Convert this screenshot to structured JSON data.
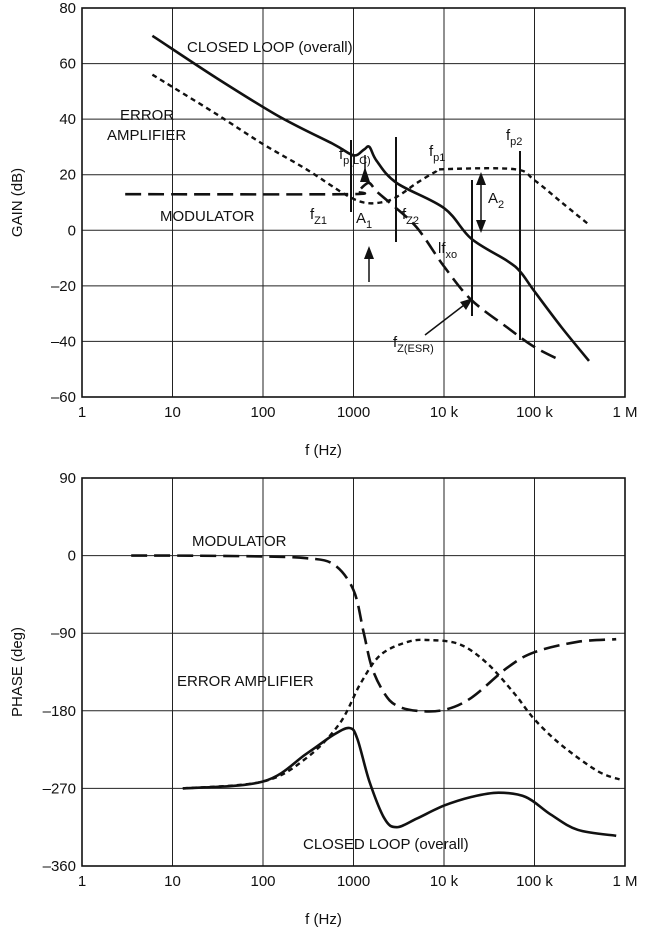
{
  "chart_data": [
    {
      "type": "line",
      "xscale": "log",
      "xlim": [
        1,
        1000000
      ],
      "ylim": [
        -60,
        80
      ],
      "xlabel": "f (Hz)",
      "ylabel": "GAIN (dB)",
      "x_tick_labels": [
        "1",
        "10",
        "100",
        "1000",
        "10 k",
        "100 k",
        "1 M"
      ],
      "y_ticks": [
        -60,
        -40,
        -20,
        0,
        20,
        40,
        60,
        80
      ],
      "y_tick_labels": [
        "–60",
        "–40",
        "–20",
        "0",
        "20",
        "40",
        "60",
        "80"
      ],
      "grid": true,
      "series": [
        {
          "name": "CLOSED LOOP (overall)",
          "style": "solid",
          "x": [
            6,
            30,
            150,
            600,
            1000,
            1300,
            1500,
            1800,
            3000,
            10000,
            20000,
            50000,
            70000,
            100000,
            200000,
            400000
          ],
          "y": [
            70,
            55,
            41,
            31,
            27,
            29,
            30,
            25,
            17,
            8,
            -3,
            -11,
            -15,
            -22,
            -35,
            -47
          ]
        },
        {
          "name": "ERROR AMPLIFIER",
          "style": "short-dash",
          "x": [
            6,
            30,
            100,
            300,
            800,
            1300,
            2000,
            3000,
            5000,
            8000,
            10000,
            60000,
            100000,
            200000,
            400000
          ],
          "y": [
            56,
            42,
            31,
            22,
            13,
            10,
            10,
            12,
            17,
            21,
            22,
            22,
            18,
            10,
            2
          ]
        },
        {
          "name": "MODULATOR",
          "style": "long-dash",
          "x": [
            3,
            800,
            1100,
            1300,
            1500,
            1800,
            2500,
            5000,
            10000,
            20000,
            50000,
            100000,
            200000
          ],
          "y": [
            13,
            13,
            14,
            16,
            17,
            14,
            10,
            1,
            -13,
            -25,
            -35,
            -42,
            -47
          ]
        }
      ],
      "annotations": {
        "closed_loop": "CLOSED LOOP (overall)",
        "error_amp_1": "ERROR",
        "error_amp_2": "AMPLIFIER",
        "modulator": "MODULATOR",
        "fp_lc": {
          "main": "f",
          "sub": "p(LC)"
        },
        "fp1": {
          "main": "f",
          "sub": "p1"
        },
        "fp2": {
          "main": "f",
          "sub": "p2"
        },
        "fz1": {
          "main": "f",
          "sub": "Z1"
        },
        "fz2": {
          "main": "f",
          "sub": "Z2"
        },
        "a1": {
          "main": "A",
          "sub": "1"
        },
        "a2": {
          "main": "A",
          "sub": "2"
        },
        "fxo": {
          "main": "lf",
          "sub": "xo"
        },
        "fz_esr": {
          "main": "f",
          "sub": "Z(ESR)"
        }
      }
    },
    {
      "type": "line",
      "xscale": "log",
      "xlim": [
        1,
        1000000
      ],
      "ylim": [
        -360,
        90
      ],
      "xlabel": "f (Hz)",
      "ylabel": "PHASE (deg)",
      "x_tick_labels": [
        "1",
        "10",
        "100",
        "1000",
        "10 k",
        "100 k",
        "1 M"
      ],
      "y_ticks": [
        -360,
        -270,
        -180,
        -90,
        0,
        90
      ],
      "y_tick_labels": [
        "–360",
        "–270",
        "–180",
        "–90",
        "0",
        "90"
      ],
      "grid": true,
      "series": [
        {
          "name": "MODULATOR",
          "style": "long-dash",
          "x": [
            3.5,
            10,
            100,
            300,
            600,
            1000,
            1300,
            1600,
            2200,
            3000,
            5000,
            10000,
            20000,
            50000,
            100000,
            300000,
            800000
          ],
          "y": [
            0,
            0,
            -1,
            -3,
            -10,
            -40,
            -90,
            -130,
            -160,
            -174,
            -180,
            -179,
            -165,
            -130,
            -112,
            -100,
            -97
          ]
        },
        {
          "name": "ERROR AMPLIFIER",
          "style": "short-dash",
          "x": [
            13,
            100,
            300,
            700,
            1200,
            2000,
            4000,
            7000,
            15000,
            30000,
            60000,
            100000,
            200000,
            500000,
            900000
          ],
          "y": [
            -270,
            -262,
            -235,
            -195,
            -148,
            -115,
            -100,
            -98,
            -103,
            -125,
            -160,
            -190,
            -220,
            -250,
            -260
          ]
        },
        {
          "name": "CLOSED LOOP (overall)",
          "style": "solid",
          "x": [
            13,
            100,
            300,
            600,
            900,
            1100,
            1500,
            2200,
            3000,
            5000,
            10000,
            20000,
            40000,
            80000,
            150000,
            300000,
            800000
          ],
          "y": [
            -270,
            -262,
            -230,
            -208,
            -200,
            -212,
            -262,
            -305,
            -315,
            -305,
            -290,
            -280,
            -275,
            -280,
            -300,
            -318,
            -325
          ]
        }
      ],
      "annotations": {
        "modulator": "MODULATOR",
        "error_amp": "ERROR AMPLIFIER",
        "closed_loop": "CLOSED LOOP (overall)"
      }
    }
  ]
}
